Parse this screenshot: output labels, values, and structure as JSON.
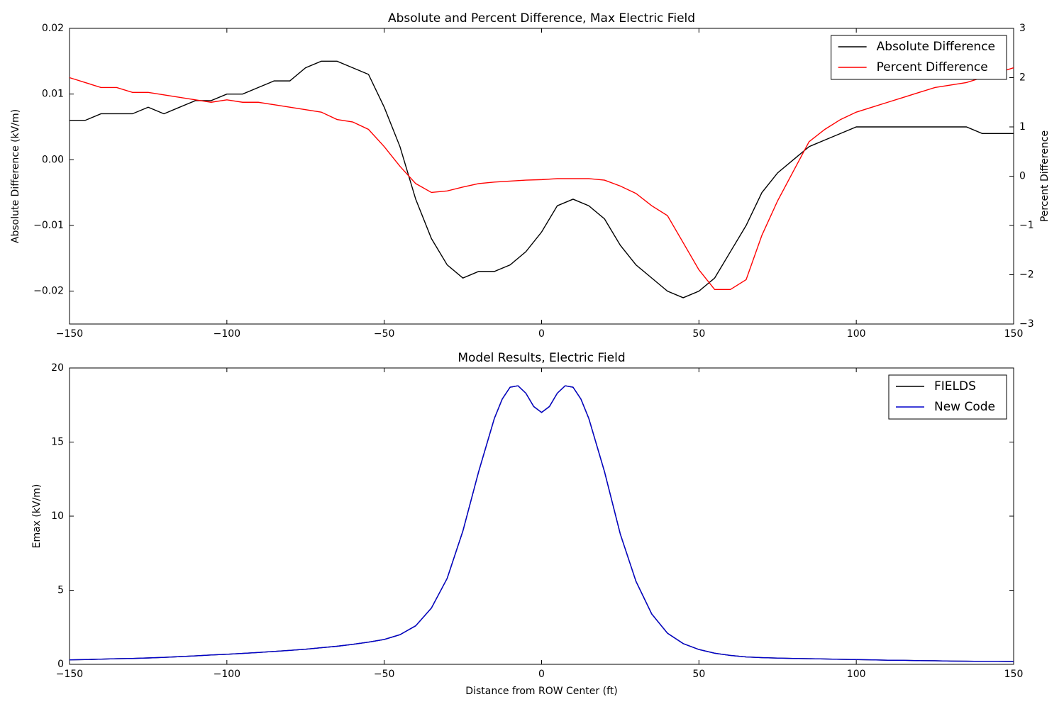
{
  "chart_data": [
    {
      "type": "line",
      "title": "Absolute and Percent Difference, Max Electric Field",
      "ylabel": "Absolute Difference (kV/m)",
      "y2label": "Percent Difference",
      "legend": "upper right",
      "xlim": [
        -150,
        150
      ],
      "xticks": [
        {
          "value": -150,
          "label": "−150"
        },
        {
          "value": -100,
          "label": "−100"
        },
        {
          "value": -50,
          "label": "−50"
        },
        0,
        50,
        100,
        150
      ],
      "ylim": [
        -0.025,
        0.02
      ],
      "yticks": [
        {
          "value": -0.02,
          "label": "−0.02"
        },
        {
          "value": -0.01,
          "label": "−0.01"
        },
        {
          "value": 0,
          "label": "0.00"
        },
        0.01,
        0.02
      ],
      "y2lim": [
        -3,
        3
      ],
      "y2ticks": [
        {
          "value": -3,
          "label": "−3"
        },
        {
          "value": -2,
          "label": "−2"
        },
        {
          "value": -1,
          "label": "−1"
        },
        0,
        1,
        2,
        3
      ],
      "x": [
        -150,
        -145,
        -140,
        -135,
        -130,
        -125,
        -120,
        -115,
        -110,
        -105,
        -100,
        -95,
        -90,
        -85,
        -80,
        -75,
        -70,
        -65,
        -60,
        -55,
        -50,
        -45,
        -40,
        -35,
        -30,
        -25,
        -20,
        -15,
        -10,
        -5,
        0,
        5,
        10,
        15,
        20,
        25,
        30,
        35,
        40,
        45,
        50,
        55,
        60,
        65,
        70,
        75,
        80,
        85,
        90,
        95,
        100,
        105,
        110,
        115,
        120,
        125,
        130,
        135,
        140,
        145,
        150
      ],
      "series": [
        {
          "name": "Absolute Difference",
          "color": "#000000",
          "values": [
            0.006,
            0.006,
            0.007,
            0.007,
            0.007,
            0.008,
            0.007,
            0.008,
            0.009,
            0.009,
            0.01,
            0.01,
            0.011,
            0.012,
            0.012,
            0.014,
            0.015,
            0.015,
            0.014,
            0.013,
            0.008,
            0.002,
            -0.006,
            -0.012,
            -0.016,
            -0.018,
            -0.017,
            -0.017,
            -0.016,
            -0.014,
            -0.011,
            -0.007,
            -0.006,
            -0.007,
            -0.009,
            -0.013,
            -0.016,
            -0.018,
            -0.02,
            -0.021,
            -0.02,
            -0.018,
            -0.014,
            -0.01,
            -0.005,
            -0.002,
            0.0,
            0.002,
            0.003,
            0.004,
            0.005,
            0.005,
            0.005,
            0.005,
            0.005,
            0.005,
            0.005,
            0.005,
            0.004,
            0.004,
            0.004
          ]
        },
        {
          "name": "Percent Difference",
          "color": "#ff0000",
          "axis": "y2",
          "values": [
            2.0,
            1.9,
            1.8,
            1.8,
            1.7,
            1.7,
            1.65,
            1.6,
            1.55,
            1.5,
            1.55,
            1.5,
            1.5,
            1.45,
            1.4,
            1.35,
            1.3,
            1.15,
            1.1,
            0.95,
            0.6,
            0.2,
            -0.15,
            -0.33,
            -0.3,
            -0.22,
            -0.15,
            -0.12,
            -0.1,
            -0.08,
            -0.07,
            -0.05,
            -0.05,
            -0.05,
            -0.08,
            -0.2,
            -0.35,
            -0.6,
            -0.8,
            -1.35,
            -1.9,
            -2.3,
            -2.3,
            -2.1,
            -1.2,
            -0.5,
            0.1,
            0.7,
            0.95,
            1.15,
            1.3,
            1.4,
            1.5,
            1.6,
            1.7,
            1.8,
            1.85,
            1.9,
            2.0,
            2.1,
            2.2
          ]
        }
      ]
    },
    {
      "type": "line",
      "title": "Model Results, Electric Field",
      "xlabel": "Distance from ROW Center (ft)",
      "ylabel": "Emax (kV/m)",
      "legend": "upper right",
      "xlim": [
        -150,
        150
      ],
      "xticks": [
        {
          "value": -150,
          "label": "−150"
        },
        {
          "value": -100,
          "label": "−100"
        },
        {
          "value": -50,
          "label": "−50"
        },
        0,
        50,
        100,
        150
      ],
      "ylim": [
        0,
        20
      ],
      "yticks": [
        0,
        5,
        10,
        15,
        20
      ],
      "x": [
        -150,
        -145,
        -140,
        -135,
        -130,
        -125,
        -120,
        -115,
        -110,
        -105,
        -100,
        -95,
        -90,
        -85,
        -80,
        -75,
        -70,
        -65,
        -60,
        -55,
        -50,
        -45,
        -40,
        -35,
        -30,
        -25,
        -20,
        -15,
        -12.5,
        -10,
        -7.5,
        -5,
        -2.5,
        0,
        2.5,
        5,
        7.5,
        10,
        12.5,
        15,
        20,
        25,
        30,
        35,
        40,
        45,
        50,
        55,
        60,
        65,
        70,
        75,
        80,
        85,
        90,
        95,
        100,
        105,
        110,
        115,
        120,
        125,
        130,
        135,
        140,
        145,
        150
      ],
      "series": [
        {
          "name": "FIELDS",
          "color": "#000000",
          "values": [
            0.3,
            0.32,
            0.35,
            0.38,
            0.4,
            0.43,
            0.47,
            0.52,
            0.57,
            0.63,
            0.68,
            0.74,
            0.8,
            0.87,
            0.94,
            1.02,
            1.12,
            1.22,
            1.35,
            1.5,
            1.68,
            2.0,
            2.6,
            3.8,
            5.8,
            9.0,
            13.0,
            16.6,
            17.9,
            18.7,
            18.8,
            18.3,
            17.4,
            17.0,
            17.4,
            18.3,
            18.8,
            18.7,
            17.9,
            16.6,
            13.0,
            8.8,
            5.6,
            3.4,
            2.1,
            1.4,
            1.0,
            0.75,
            0.6,
            0.5,
            0.45,
            0.42,
            0.4,
            0.38,
            0.36,
            0.34,
            0.32,
            0.3,
            0.28,
            0.27,
            0.25,
            0.24,
            0.22,
            0.21,
            0.2,
            0.2,
            0.19
          ]
        },
        {
          "name": "New Code",
          "color": "#0000cc",
          "values": [
            0.3,
            0.32,
            0.35,
            0.38,
            0.4,
            0.43,
            0.47,
            0.52,
            0.57,
            0.63,
            0.68,
            0.74,
            0.8,
            0.87,
            0.94,
            1.02,
            1.12,
            1.22,
            1.35,
            1.5,
            1.68,
            2.0,
            2.6,
            3.8,
            5.8,
            9.0,
            13.0,
            16.6,
            17.9,
            18.7,
            18.8,
            18.3,
            17.4,
            17.0,
            17.4,
            18.3,
            18.8,
            18.7,
            17.9,
            16.6,
            13.0,
            8.8,
            5.6,
            3.4,
            2.1,
            1.4,
            1.0,
            0.75,
            0.6,
            0.5,
            0.45,
            0.42,
            0.4,
            0.38,
            0.36,
            0.34,
            0.32,
            0.3,
            0.28,
            0.27,
            0.25,
            0.24,
            0.22,
            0.21,
            0.2,
            0.2,
            0.19
          ]
        }
      ]
    }
  ]
}
